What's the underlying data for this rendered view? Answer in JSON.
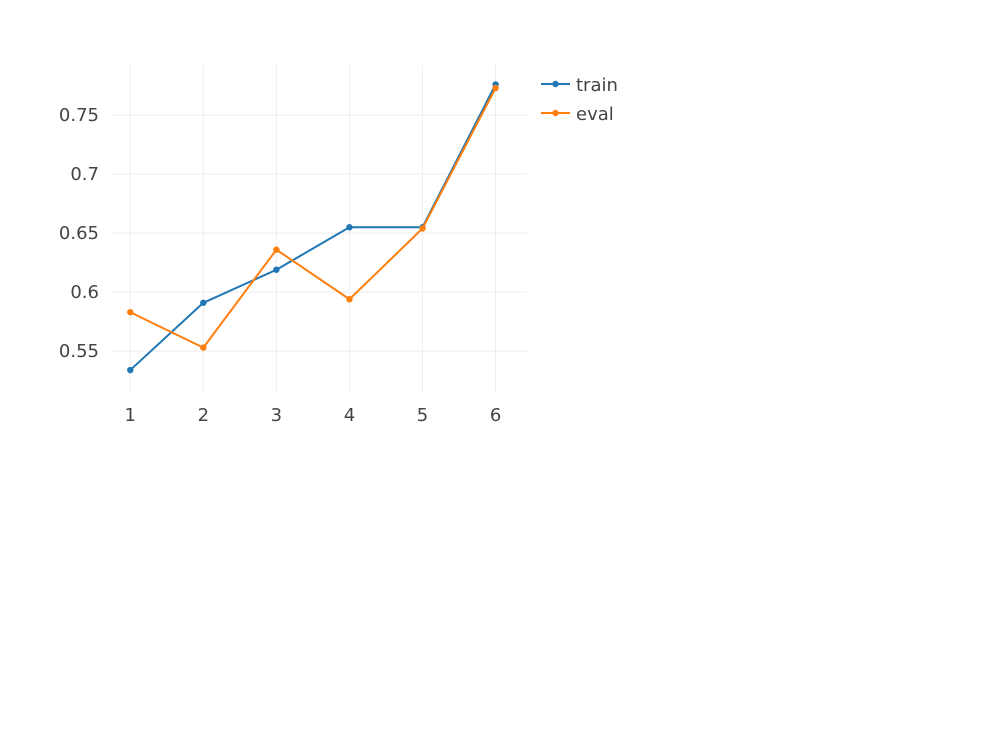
{
  "chart_data": {
    "type": "line",
    "title": "",
    "xlabel": "",
    "ylabel": "",
    "x": [
      1,
      2,
      3,
      4,
      5,
      6
    ],
    "xticks": [
      "1",
      "2",
      "3",
      "4",
      "5",
      "6"
    ],
    "yticks": [
      0.55,
      0.6,
      0.65,
      0.7,
      0.75
    ],
    "ytick_labels": [
      "0.55",
      "0.6",
      "0.65",
      "0.7",
      "0.75"
    ],
    "xlim": [
      0.75,
      6.43
    ],
    "ylim": [
      0.5154,
      0.7925
    ],
    "grid": true,
    "legend_position": "top-right outside",
    "series": [
      {
        "name": "train",
        "color": "#1f77b4",
        "values": [
          0.534,
          0.591,
          0.619,
          0.655,
          0.655,
          0.776
        ]
      },
      {
        "name": "eval",
        "color": "#ff7f0e",
        "values": [
          0.583,
          0.553,
          0.636,
          0.594,
          0.654,
          0.773
        ]
      }
    ]
  }
}
